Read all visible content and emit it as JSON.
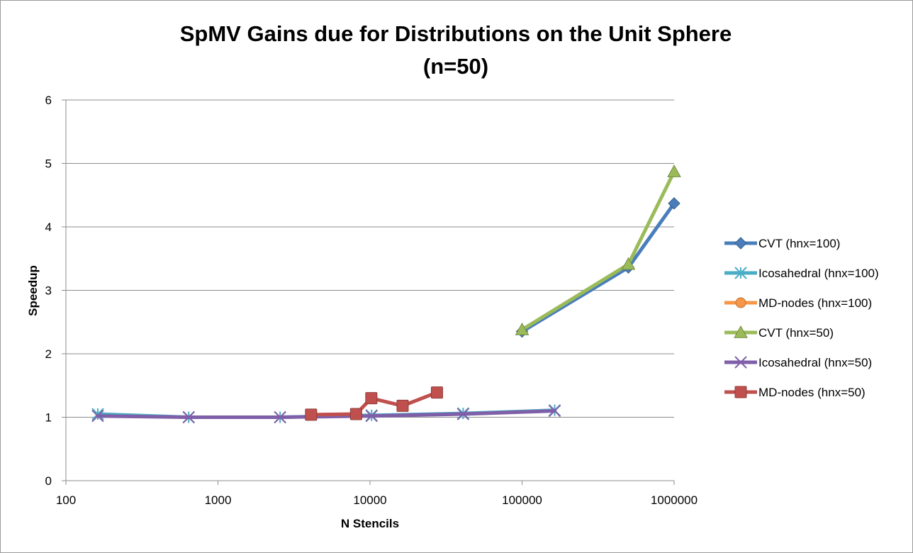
{
  "chart_data": {
    "type": "line",
    "title": "SpMV Gains due for Distributions on the Unit Sphere",
    "subtitle": "(n=50)",
    "xlabel": "N Stencils",
    "ylabel": "Speedup",
    "x_scale": "log",
    "xlim": [
      100,
      1000000
    ],
    "ylim": [
      0,
      6
    ],
    "x_ticks": [
      "100",
      "1000",
      "10000",
      "100000",
      "1000000"
    ],
    "y_ticks": [
      "0",
      "1",
      "2",
      "3",
      "4",
      "5",
      "6"
    ],
    "grid": "horizontal",
    "legend_position": "right",
    "series": [
      {
        "name": "CVT (hnx=100)",
        "color": "#4a7ebb",
        "marker": "diamond",
        "x": [
          100000,
          500000,
          1000000
        ],
        "y": [
          2.35,
          3.36,
          4.37
        ]
      },
      {
        "name": "Icosahedral (hnx=100)",
        "color": "#4bacc6",
        "marker": "asterisk",
        "x": [
          162,
          642,
          2562,
          10242,
          40962,
          163842
        ],
        "y": [
          1.05,
          1.0,
          1.0,
          1.03,
          1.06,
          1.11
        ]
      },
      {
        "name": "MD-nodes (hnx=100)",
        "color": "#f79646",
        "marker": "circle",
        "x": [],
        "y": []
      },
      {
        "name": "CVT (hnx=50)",
        "color": "#9bbb59",
        "marker": "triangle",
        "x": [
          100000,
          500000,
          1000000
        ],
        "y": [
          2.38,
          3.41,
          4.87
        ]
      },
      {
        "name": "Icosahedral (hnx=50)",
        "color": "#7f5fa8",
        "marker": "x",
        "x": [
          162,
          642,
          2562,
          10242,
          40962,
          163842
        ],
        "y": [
          1.02,
          1.0,
          1.0,
          1.02,
          1.05,
          1.1
        ]
      },
      {
        "name": "MD-nodes (hnx=50)",
        "color": "#c0504d",
        "marker": "square",
        "x": [
          4096,
          8100,
          10201,
          16384,
          27556
        ],
        "y": [
          1.04,
          1.05,
          1.3,
          1.18,
          1.39
        ]
      }
    ]
  }
}
